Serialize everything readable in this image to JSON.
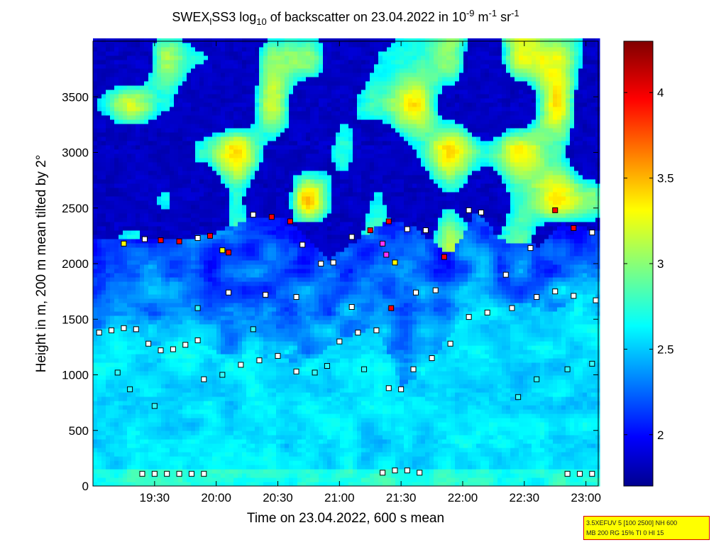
{
  "chart_data": {
    "type": "heatmap",
    "title": {
      "prefix": "SWEX",
      "sub_l": "l",
      "mid": "SS3 log",
      "sub_10": "10",
      "rest": " of backscatter on 23.04.2022 in 10",
      "exp1": "-9",
      "unit_m": " m",
      "exp2": "-1",
      "unit_sr": " sr",
      "exp3": "-1"
    },
    "xlabel": "Time on 23.04.2022, 600 s mean",
    "ylabel": "Height in m, 200 m mean tilted by 2°",
    "x_range_hours": [
      19.0,
      23.1
    ],
    "y_range_m": [
      0,
      4000
    ],
    "x_ticks": [
      {
        "h": 19.5,
        "label": "19:30"
      },
      {
        "h": 20.0,
        "label": "20:00"
      },
      {
        "h": 20.5,
        "label": "20:30"
      },
      {
        "h": 21.0,
        "label": "21:00"
      },
      {
        "h": 21.5,
        "label": "21:30"
      },
      {
        "h": 22.0,
        "label": "22:00"
      },
      {
        "h": 22.5,
        "label": "22:30"
      },
      {
        "h": 23.0,
        "label": "23:00"
      }
    ],
    "y_ticks": [
      {
        "v": 0,
        "label": "0"
      },
      {
        "v": 500,
        "label": "500"
      },
      {
        "v": 1000,
        "label": "1000"
      },
      {
        "v": 1500,
        "label": "1500"
      },
      {
        "v": 2000,
        "label": "2000"
      },
      {
        "v": 2500,
        "label": "2500"
      },
      {
        "v": 3000,
        "label": "3000"
      },
      {
        "v": 3500,
        "label": "3500"
      }
    ],
    "colorbar": {
      "range": [
        1.7,
        4.3
      ],
      "ticks": [
        {
          "v": 2,
          "label": "2"
        },
        {
          "v": 2.5,
          "label": "2.5"
        },
        {
          "v": 3,
          "label": "3"
        },
        {
          "v": 3.5,
          "label": "3.5"
        },
        {
          "v": 4,
          "label": "4"
        }
      ]
    },
    "layers": [
      {
        "t0": 19.0,
        "t1": 23.1,
        "points": [
          [
            19.0,
            1390
          ],
          [
            19.3,
            1410
          ],
          [
            19.5,
            1240
          ],
          [
            19.8,
            1290
          ],
          [
            20.0,
            1200
          ],
          [
            20.3,
            1130
          ],
          [
            20.5,
            1180
          ],
          [
            20.7,
            1050
          ],
          [
            21.0,
            1320
          ],
          [
            21.3,
            1420
          ],
          [
            21.5,
            880
          ],
          [
            21.7,
            1050
          ],
          [
            22.0,
            1530
          ],
          [
            22.3,
            1590
          ],
          [
            22.5,
            1640
          ],
          [
            22.7,
            1550
          ],
          [
            23.0,
            1730
          ],
          [
            23.1,
            1680
          ]
        ]
      },
      {
        "t0": 19.4,
        "t1": 23.1,
        "points": [
          [
            19.4,
            2220
          ],
          [
            19.7,
            2210
          ],
          [
            20.0,
            2260
          ],
          [
            20.3,
            2420
          ],
          [
            20.6,
            2380
          ],
          [
            20.9,
            2020
          ],
          [
            21.2,
            2250
          ],
          [
            21.4,
            2380
          ],
          [
            21.6,
            2310
          ],
          [
            21.9,
            2060
          ],
          [
            22.1,
            2480
          ],
          [
            22.3,
            2200
          ],
          [
            22.6,
            2150
          ],
          [
            22.8,
            2350
          ],
          [
            23.1,
            2280
          ]
        ]
      }
    ],
    "markers": [
      {
        "t": 19.05,
        "h": 1380,
        "c": "white"
      },
      {
        "t": 19.15,
        "h": 1400,
        "c": "white"
      },
      {
        "t": 19.25,
        "h": 1420,
        "c": "white"
      },
      {
        "t": 19.35,
        "h": 1410,
        "c": "white"
      },
      {
        "t": 19.45,
        "h": 1280,
        "c": "white"
      },
      {
        "t": 19.55,
        "h": 1220,
        "c": "white"
      },
      {
        "t": 19.65,
        "h": 1230,
        "c": "white"
      },
      {
        "t": 19.75,
        "h": 1270,
        "c": "white"
      },
      {
        "t": 19.85,
        "h": 1310,
        "c": "white"
      },
      {
        "t": 19.42,
        "h": 2220,
        "c": "white"
      },
      {
        "t": 19.55,
        "h": 2210,
        "c": "red"
      },
      {
        "t": 19.7,
        "h": 2200,
        "c": "red"
      },
      {
        "t": 19.85,
        "h": 2230,
        "c": "white"
      },
      {
        "t": 19.95,
        "h": 2250,
        "c": "red"
      },
      {
        "t": 20.1,
        "h": 2100,
        "c": "red"
      },
      {
        "t": 20.3,
        "h": 2440,
        "c": "white"
      },
      {
        "t": 20.45,
        "h": 2420,
        "c": "red"
      },
      {
        "t": 20.6,
        "h": 2380,
        "c": "red"
      },
      {
        "t": 20.7,
        "h": 2170,
        "c": "white"
      },
      {
        "t": 20.85,
        "h": 2000,
        "c": "white"
      },
      {
        "t": 20.95,
        "h": 2010,
        "c": "white"
      },
      {
        "t": 21.1,
        "h": 2240,
        "c": "white"
      },
      {
        "t": 21.25,
        "h": 2300,
        "c": "red"
      },
      {
        "t": 21.4,
        "h": 2380,
        "c": "red"
      },
      {
        "t": 21.55,
        "h": 2310,
        "c": "white"
      },
      {
        "t": 21.7,
        "h": 2300,
        "c": "white"
      },
      {
        "t": 21.85,
        "h": 2060,
        "c": "red"
      },
      {
        "t": 22.05,
        "h": 2480,
        "c": "white"
      },
      {
        "t": 22.15,
        "h": 2460,
        "c": "white"
      },
      {
        "t": 22.35,
        "h": 1900,
        "c": "white"
      },
      {
        "t": 22.55,
        "h": 2140,
        "c": "white"
      },
      {
        "t": 22.75,
        "h": 2480,
        "c": "red"
      },
      {
        "t": 22.9,
        "h": 2320,
        "c": "red"
      },
      {
        "t": 23.05,
        "h": 2280,
        "c": "white"
      },
      {
        "t": 19.9,
        "h": 960,
        "c": "white"
      },
      {
        "t": 20.05,
        "h": 1000,
        "c": "cyan"
      },
      {
        "t": 20.2,
        "h": 1090,
        "c": "white"
      },
      {
        "t": 20.35,
        "h": 1130,
        "c": "white"
      },
      {
        "t": 20.5,
        "h": 1170,
        "c": "white"
      },
      {
        "t": 20.65,
        "h": 1030,
        "c": "white"
      },
      {
        "t": 20.8,
        "h": 1020,
        "c": "cyan"
      },
      {
        "t": 21.0,
        "h": 1300,
        "c": "white"
      },
      {
        "t": 21.15,
        "h": 1380,
        "c": "white"
      },
      {
        "t": 21.3,
        "h": 1400,
        "c": "white"
      },
      {
        "t": 21.4,
        "h": 880,
        "c": "white"
      },
      {
        "t": 21.5,
        "h": 870,
        "c": "white"
      },
      {
        "t": 21.6,
        "h": 1050,
        "c": "white"
      },
      {
        "t": 21.75,
        "h": 1150,
        "c": "white"
      },
      {
        "t": 21.9,
        "h": 1280,
        "c": "white"
      },
      {
        "t": 22.05,
        "h": 1520,
        "c": "white"
      },
      {
        "t": 22.2,
        "h": 1560,
        "c": "white"
      },
      {
        "t": 22.4,
        "h": 1600,
        "c": "white"
      },
      {
        "t": 22.6,
        "h": 1700,
        "c": "white"
      },
      {
        "t": 22.75,
        "h": 1750,
        "c": "white"
      },
      {
        "t": 22.9,
        "h": 1710,
        "c": "white"
      },
      {
        "t": 23.08,
        "h": 1670,
        "c": "white"
      },
      {
        "t": 19.4,
        "h": 110,
        "c": "white"
      },
      {
        "t": 19.5,
        "h": 110,
        "c": "white"
      },
      {
        "t": 19.6,
        "h": 110,
        "c": "white"
      },
      {
        "t": 19.7,
        "h": 110,
        "c": "white"
      },
      {
        "t": 19.8,
        "h": 110,
        "c": "white"
      },
      {
        "t": 19.9,
        "h": 110,
        "c": "white"
      },
      {
        "t": 21.35,
        "h": 120,
        "c": "white"
      },
      {
        "t": 21.45,
        "h": 140,
        "c": "white"
      },
      {
        "t": 21.55,
        "h": 140,
        "c": "white"
      },
      {
        "t": 21.65,
        "h": 120,
        "c": "white"
      },
      {
        "t": 22.85,
        "h": 110,
        "c": "white"
      },
      {
        "t": 22.95,
        "h": 110,
        "c": "white"
      },
      {
        "t": 23.05,
        "h": 110,
        "c": "white"
      },
      {
        "t": 19.2,
        "h": 1020,
        "c": "cyan"
      },
      {
        "t": 19.3,
        "h": 870,
        "c": "cyan"
      },
      {
        "t": 19.5,
        "h": 720,
        "c": "cyan"
      },
      {
        "t": 20.9,
        "h": 1080,
        "c": "cyan"
      },
      {
        "t": 21.2,
        "h": 1050,
        "c": "cyan"
      },
      {
        "t": 22.45,
        "h": 800,
        "c": "cyan"
      },
      {
        "t": 22.6,
        "h": 960,
        "c": "cyan"
      },
      {
        "t": 22.85,
        "h": 1050,
        "c": "cyan"
      },
      {
        "t": 23.05,
        "h": 1100,
        "c": "cyan"
      },
      {
        "t": 19.25,
        "h": 2180,
        "c": "yellow"
      },
      {
        "t": 20.05,
        "h": 2120,
        "c": "yellow"
      },
      {
        "t": 21.45,
        "h": 2010,
        "c": "yellow"
      },
      {
        "t": 21.35,
        "h": 2180,
        "c": "magenta"
      },
      {
        "t": 21.38,
        "h": 2080,
        "c": "magenta"
      },
      {
        "t": 21.42,
        "h": 1600,
        "c": "red"
      },
      {
        "t": 20.3,
        "h": 1410,
        "c": "cyan"
      },
      {
        "t": 19.85,
        "h": 1600,
        "c": "cyan"
      },
      {
        "t": 20.65,
        "h": 1700,
        "c": "white"
      },
      {
        "t": 20.4,
        "h": 1720,
        "c": "white"
      },
      {
        "t": 20.1,
        "h": 1740,
        "c": "white"
      },
      {
        "t": 21.1,
        "h": 1610,
        "c": "white"
      },
      {
        "t": 21.62,
        "h": 1740,
        "c": "white"
      },
      {
        "t": 21.78,
        "h": 1760,
        "c": "white"
      }
    ]
  },
  "info_box": {
    "line1": "3.5XEFUV 5 [100 2500] NH 600",
    "line2": "MB 200 RG 15% TI 0 HI 15"
  }
}
